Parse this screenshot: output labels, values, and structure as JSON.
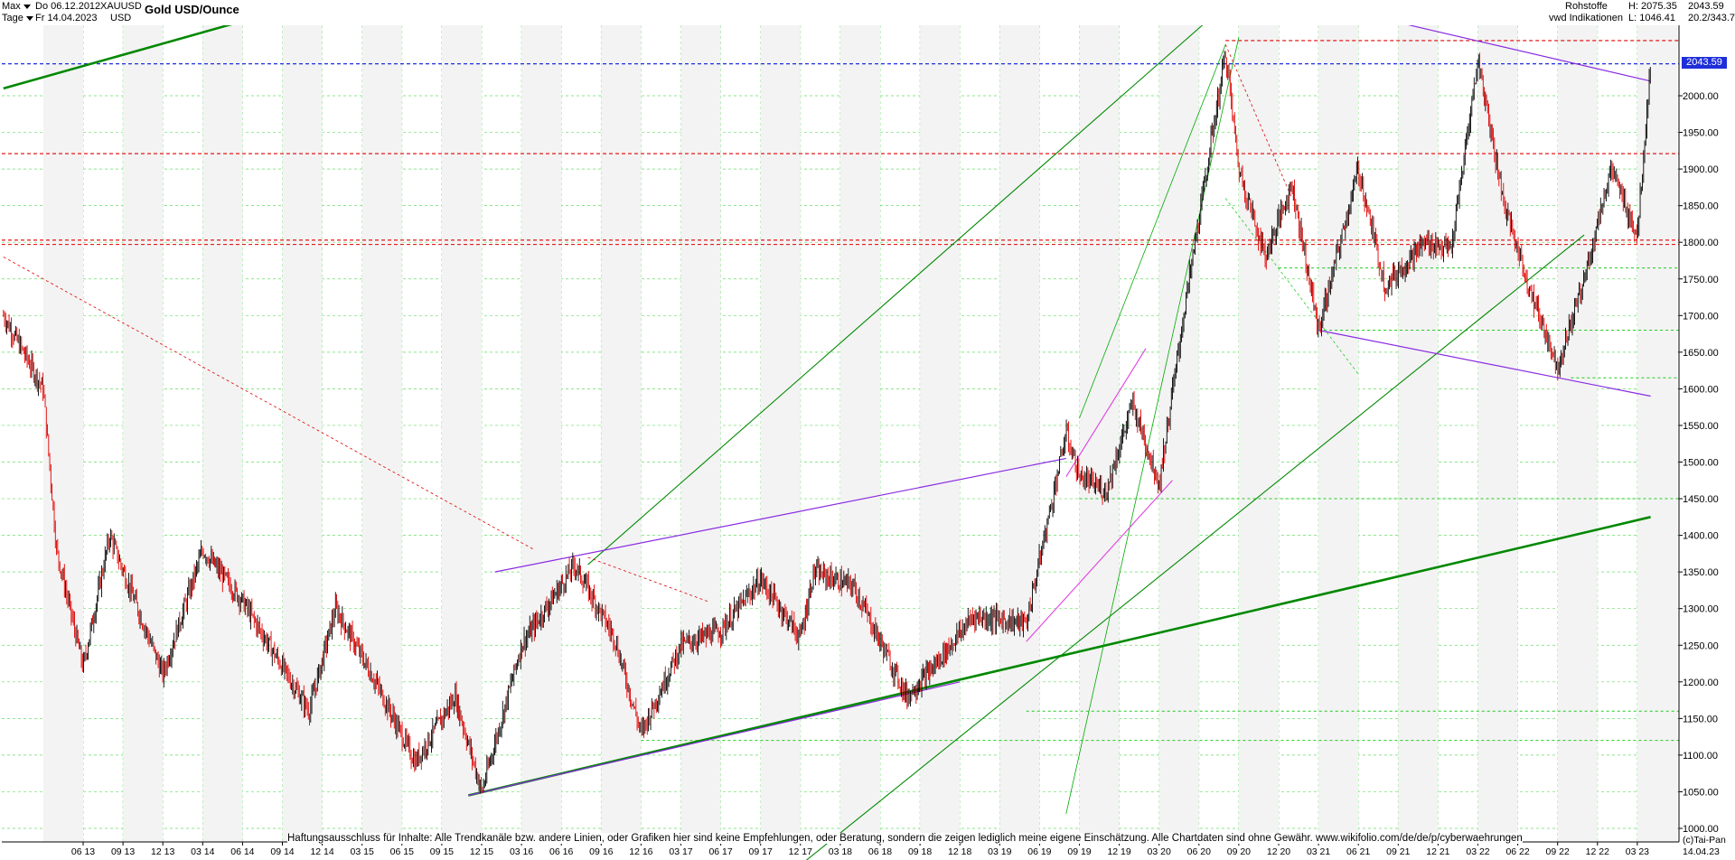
{
  "header": {
    "period_label": "Max",
    "interval_label": "Tage",
    "start_date": "Do 06.12.2012",
    "end_date": "Fr 14.04.2023",
    "symbol": "XAUUSD",
    "currency": "USD",
    "title": "Gold USD/Ounce",
    "category": "Rohstoffe",
    "source": "vwd Indikationen",
    "high_label": "H: 2075.35",
    "low_label": "L: 1046.41",
    "last_value": "2043.59",
    "range_info": "20.2/343.7"
  },
  "current_price_tag": "2043.59",
  "footer": {
    "disclaimer": "Haftungsausschluss für Inhalte: Alle Trendkanäle bzw. andere Linien, oder Grafiken hier sind keine Empfehlungen, oder Beratung, sondern die zeigen lediglich meine eigene Einschätzung. Alle Chartdaten sind ohne Gewähr.  www.wikifolio.com/de/de/p/cyberwaehrungen",
    "copyright": "(c)Tai-Pan",
    "chart_end_date": "14.04.23"
  },
  "colors": {
    "bull_candle": "#000000",
    "bear_candle": "#e00000",
    "trend_green": "#008800",
    "trend_thin_green": "#00aa00",
    "channel_purple": "#8a2be2",
    "channel_magenta": "#e040e0",
    "resistance_red": "#e00000",
    "support_green": "#22cc22",
    "current_price_blue": "#1e2fd9"
  },
  "chart_data": {
    "type": "candlestick",
    "title": "Gold USD/Ounce",
    "ylim": [
      1000,
      2100
    ],
    "y_ticks": [
      "2000.00",
      "1950.00",
      "1900.00",
      "1850.00",
      "1800.00",
      "1750.00",
      "1700.00",
      "1650.00",
      "1600.00",
      "1550.00",
      "1500.00",
      "1450.00",
      "1400.00",
      "1350.00",
      "1300.00",
      "1250.00",
      "1200.00",
      "1150.00",
      "1100.00",
      "1050.00",
      "1000.00"
    ],
    "x_ticks": [
      "06.13",
      "09.13",
      "12.13",
      "03.14",
      "06.14",
      "09.14",
      "12.14",
      "03.15",
      "06.15",
      "09.15",
      "12.15",
      "03.16",
      "06.16",
      "09.16",
      "12.16",
      "03.17",
      "06.17",
      "09.17",
      "12.17",
      "03.18",
      "06.18",
      "09.18",
      "12.18",
      "03.19",
      "06.19",
      "09.19",
      "12.19",
      "03.20",
      "06.20",
      "09.20",
      "12.20",
      "03.21",
      "06.21",
      "09.21",
      "12.21",
      "03.22",
      "06.22",
      "09.22",
      "12.22",
      "03.23"
    ],
    "series": [
      {
        "x": [
          "2012-12",
          "2013-03",
          "2013-04",
          "2013-06",
          "2013-08",
          "2013-12",
          "2014-03",
          "2014-06",
          "2014-09",
          "2014-11",
          "2015-01",
          "2015-04",
          "2015-07",
          "2015-10",
          "2015-12",
          "2016-03",
          "2016-07",
          "2016-10",
          "2016-12",
          "2017-03",
          "2017-06",
          "2017-09",
          "2017-12",
          "2018-01",
          "2018-04",
          "2018-08",
          "2018-10",
          "2019-01",
          "2019-05",
          "2019-08",
          "2019-09",
          "2019-11",
          "2020-01",
          "2020-03",
          "2020-05",
          "2020-08",
          "2020-09",
          "2020-11",
          "2021-01",
          "2021-03",
          "2021-06",
          "2021-08",
          "2021-11",
          "2022-01",
          "2022-03",
          "2022-05",
          "2022-07",
          "2022-09",
          "2022-11",
          "2023-01",
          "2023-03",
          "2023-04"
        ],
        "y": [
          1700,
          1600,
          1380,
          1220,
          1400,
          1210,
          1380,
          1310,
          1220,
          1160,
          1300,
          1200,
          1090,
          1180,
          1050,
          1250,
          1360,
          1260,
          1130,
          1250,
          1270,
          1340,
          1260,
          1350,
          1330,
          1180,
          1220,
          1290,
          1280,
          1540,
          1480,
          1460,
          1580,
          1470,
          1720,
          2060,
          1900,
          1780,
          1880,
          1680,
          1900,
          1740,
          1800,
          1790,
          2050,
          1850,
          1730,
          1630,
          1750,
          1900,
          1810,
          2043.59
        ]
      }
    ],
    "horizontal_levels": {
      "current": 2043.59,
      "resistance": [
        2075.35,
        1921,
        1803,
        1797
      ],
      "support": [
        1765,
        1680,
        1615,
        1450,
        1160,
        1120
      ]
    }
  }
}
